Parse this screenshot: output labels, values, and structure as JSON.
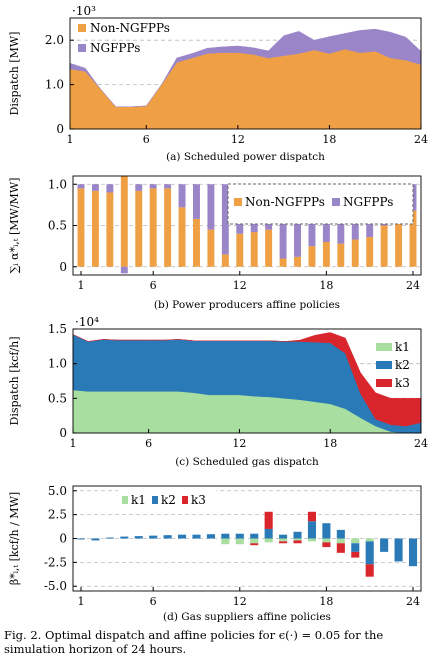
{
  "figure_caption": "Fig. 2.  Optimal dispatch and affine policies for ϵ(·) = 0.05 for the simulation horizon of 24 hours.",
  "chart_data": [
    {
      "type": "area",
      "id": "a",
      "caption": "(a) Scheduled power dispatch",
      "ylabel": "Dispatch [MW]",
      "exponent_label": "·10³",
      "xticks": [
        "1",
        "6",
        "12",
        "18",
        "24"
      ],
      "yticks": [
        "0",
        "1.0",
        "2.0"
      ],
      "ylim": [
        0,
        2.5
      ],
      "xlim": [
        1,
        24
      ],
      "grid": "dashed-horizontal",
      "legend_position": "top-left",
      "x": [
        1,
        2,
        3,
        4,
        5,
        6,
        7,
        8,
        9,
        10,
        11,
        12,
        13,
        14,
        15,
        16,
        17,
        18,
        19,
        20,
        21,
        22,
        23,
        24
      ],
      "series": [
        {
          "name": "Non-NGFPPs",
          "color": "#f0a044",
          "values": [
            1.35,
            1.3,
            0.9,
            0.5,
            0.5,
            0.52,
            1.0,
            1.5,
            1.6,
            1.7,
            1.72,
            1.72,
            1.68,
            1.6,
            1.65,
            1.7,
            1.78,
            1.7,
            1.8,
            1.72,
            1.75,
            1.6,
            1.55,
            1.45
          ]
        },
        {
          "name": "NGFPPs",
          "color": "#9b85c9",
          "values": [
            0.13,
            0.07,
            0.0,
            0.0,
            0.0,
            0.0,
            0.0,
            0.1,
            0.1,
            0.12,
            0.13,
            0.15,
            0.15,
            0.16,
            0.45,
            0.5,
            0.22,
            0.38,
            0.35,
            0.5,
            0.5,
            0.58,
            0.52,
            0.3
          ]
        }
      ]
    },
    {
      "type": "bar",
      "id": "b",
      "caption": "(b) Power producers affine policies",
      "ylabel": "∑ᵢ α*ᵢ,ₜ [MW/MW]",
      "xticks": [
        "1",
        "6",
        "12",
        "18",
        "24"
      ],
      "yticks": [
        "0",
        "0.5",
        "1.0"
      ],
      "ylim": [
        -0.1,
        1.1
      ],
      "xlim": [
        1,
        24
      ],
      "grid": "dashed-horizontal",
      "legend_position": "top-right",
      "x": [
        1,
        2,
        3,
        4,
        5,
        6,
        7,
        8,
        9,
        10,
        11,
        12,
        13,
        14,
        15,
        16,
        17,
        18,
        19,
        20,
        21,
        22,
        23,
        24
      ],
      "series": [
        {
          "name": "Non-NGFPPs",
          "color": "#f0a044",
          "values": [
            0.95,
            0.92,
            0.9,
            1.1,
            0.92,
            0.95,
            0.95,
            0.72,
            0.58,
            0.45,
            0.15,
            0.4,
            0.42,
            0.45,
            0.1,
            0.12,
            0.25,
            0.3,
            0.28,
            0.33,
            0.36,
            0.5,
            0.55,
            0.68
          ]
        },
        {
          "name": "NGFPPs",
          "color": "#9b85c9",
          "values": [
            0.05,
            0.08,
            0.1,
            -0.08,
            0.08,
            0.05,
            0.05,
            0.28,
            0.42,
            0.55,
            0.85,
            0.6,
            0.58,
            0.55,
            0.9,
            0.88,
            0.75,
            0.7,
            0.72,
            0.67,
            0.64,
            0.5,
            0.45,
            0.32
          ]
        }
      ]
    },
    {
      "type": "area",
      "id": "c",
      "caption": "(c) Scheduled gas dispatch",
      "ylabel": "Dispatch [kcf/h]",
      "exponent_label": "·10⁴",
      "xticks": [
        "1",
        "6",
        "12",
        "18",
        "24"
      ],
      "yticks": [
        "0",
        "0.5",
        "1.0",
        "1.5"
      ],
      "ylim": [
        0,
        1.5
      ],
      "xlim": [
        1,
        24
      ],
      "grid": "dashed-horizontal",
      "legend_position": "top-right",
      "x": [
        1,
        2,
        3,
        4,
        5,
        6,
        7,
        8,
        9,
        10,
        11,
        12,
        13,
        14,
        15,
        16,
        17,
        18,
        19,
        20,
        21,
        22,
        23,
        24
      ],
      "series": [
        {
          "name": "k1",
          "color": "#a8dfa0",
          "values": [
            0.62,
            0.6,
            0.6,
            0.6,
            0.6,
            0.6,
            0.6,
            0.6,
            0.58,
            0.55,
            0.55,
            0.55,
            0.53,
            0.52,
            0.5,
            0.48,
            0.45,
            0.42,
            0.35,
            0.22,
            0.1,
            0.02,
            0.0,
            0.0
          ]
        },
        {
          "name": "k2",
          "color": "#2a7ab8",
          "values": [
            0.8,
            0.72,
            0.75,
            0.74,
            0.74,
            0.74,
            0.74,
            0.75,
            0.75,
            0.78,
            0.78,
            0.78,
            0.8,
            0.81,
            0.82,
            0.84,
            0.86,
            0.88,
            0.8,
            0.35,
            0.1,
            0.1,
            0.1,
            0.15
          ]
        },
        {
          "name": "k3",
          "color": "#d8262c",
          "values": [
            0.0,
            0.0,
            0.0,
            0.0,
            0.0,
            0.0,
            0.0,
            0.0,
            0.0,
            0.0,
            0.0,
            0.0,
            0.0,
            0.0,
            0.0,
            0.02,
            0.1,
            0.15,
            0.22,
            0.3,
            0.38,
            0.38,
            0.4,
            0.35
          ]
        }
      ]
    },
    {
      "type": "bar",
      "id": "d",
      "caption": "(d) Gas suppliers affine policies",
      "ylabel": "β*ᵢ,ₜ [kcf/h / MW]",
      "xticks": [
        "1",
        "6",
        "12",
        "18",
        "24"
      ],
      "yticks": [
        "-5.0",
        "-2.5",
        "0",
        "2.5",
        "5.0"
      ],
      "ylim": [
        -5.5,
        5.5
      ],
      "xlim": [
        1,
        24
      ],
      "grid": "dashed-horizontal",
      "legend_position": "top-center",
      "x": [
        1,
        2,
        3,
        4,
        5,
        6,
        7,
        8,
        9,
        10,
        11,
        12,
        13,
        14,
        15,
        16,
        17,
        18,
        19,
        20,
        21,
        22,
        23,
        24
      ],
      "series": [
        {
          "name": "k1",
          "color": "#a8dfa0",
          "values": [
            0,
            0,
            0,
            0,
            0,
            0,
            0,
            0,
            0,
            0,
            -0.6,
            -0.6,
            -0.5,
            -0.4,
            -0.3,
            -0.2,
            -0.3,
            -0.4,
            -0.5,
            -0.5,
            -0.3,
            0,
            0,
            0
          ]
        },
        {
          "name": "k2",
          "color": "#2a7ab8",
          "values": [
            -0.1,
            -0.2,
            0.1,
            0.2,
            0.25,
            0.3,
            0.35,
            0.4,
            0.4,
            0.45,
            0.5,
            0.5,
            0.5,
            1.0,
            0.4,
            0.7,
            1.8,
            1.6,
            0.9,
            -0.9,
            -2.4,
            -1.4,
            -2.4,
            -2.9
          ]
        },
        {
          "name": "k3",
          "color": "#d8262c",
          "values": [
            0,
            0,
            0,
            0,
            0,
            0,
            0,
            0,
            0,
            0,
            0,
            0,
            -0.2,
            1.8,
            -0.2,
            -0.3,
            1.0,
            -0.5,
            -1.0,
            -0.6,
            -1.3,
            0,
            0,
            0
          ]
        }
      ]
    }
  ]
}
